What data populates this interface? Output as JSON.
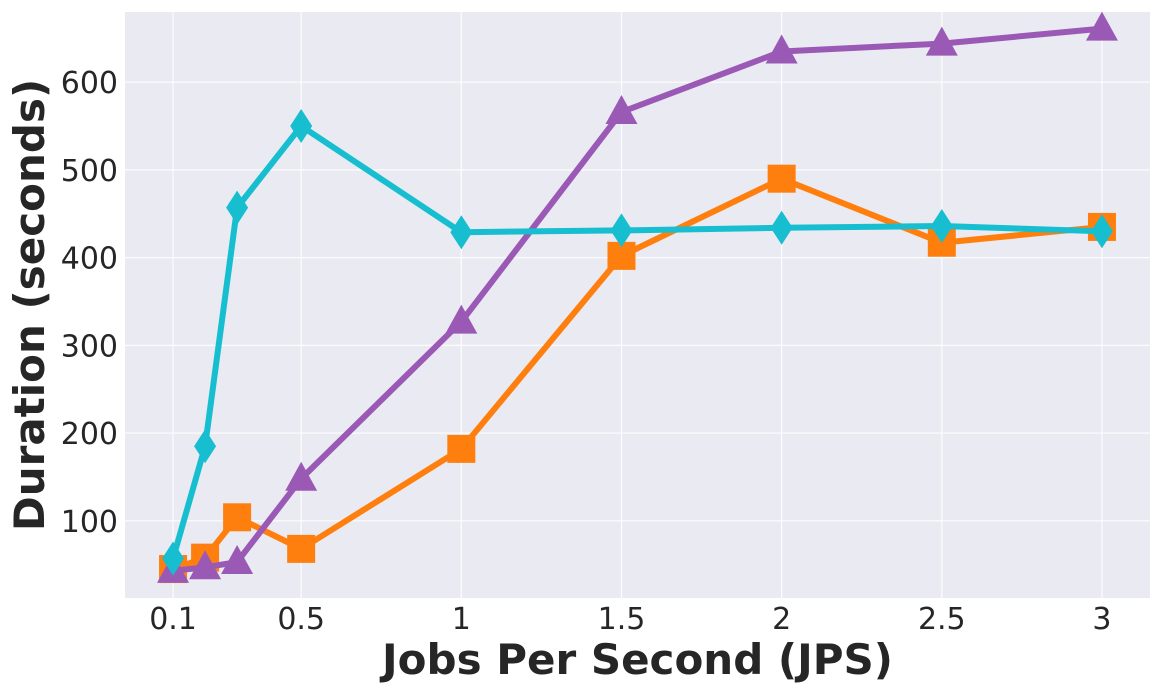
{
  "chart_data": {
    "type": "line",
    "title": "",
    "xlabel": "Jobs Per Second (JPS)",
    "ylabel": "Duration (seconds)",
    "xlim": [
      -0.05,
      3.15
    ],
    "ylim": [
      12,
      680
    ],
    "x_ticks": [
      0.1,
      0.5,
      1,
      1.5,
      2,
      2.5,
      3
    ],
    "x_tick_labels": [
      "0.1",
      "0.5",
      "1",
      "1.5",
      "2",
      "2.5",
      "3"
    ],
    "y_ticks": [
      100,
      200,
      300,
      400,
      500,
      600
    ],
    "y_tick_labels": [
      "100",
      "200",
      "300",
      "400",
      "500",
      "600"
    ],
    "grid": true,
    "background": "#eaeaf2",
    "x": [
      0.1,
      0.2,
      0.3,
      0.5,
      1,
      1.5,
      2,
      2.5,
      3
    ],
    "series": [
      {
        "color": "#ff7f0e",
        "marker": "square",
        "values": [
          45,
          58,
          104,
          68,
          182,
          402,
          490,
          417,
          435
        ]
      },
      {
        "color": "#9b59b6",
        "marker": "triangle",
        "values": [
          43,
          47,
          53,
          148,
          327,
          566,
          635,
          644,
          661
        ]
      },
      {
        "color": "#17becf",
        "marker": "diamond",
        "values": [
          57,
          185,
          457,
          550,
          429,
          431,
          434,
          436,
          430
        ]
      }
    ]
  }
}
